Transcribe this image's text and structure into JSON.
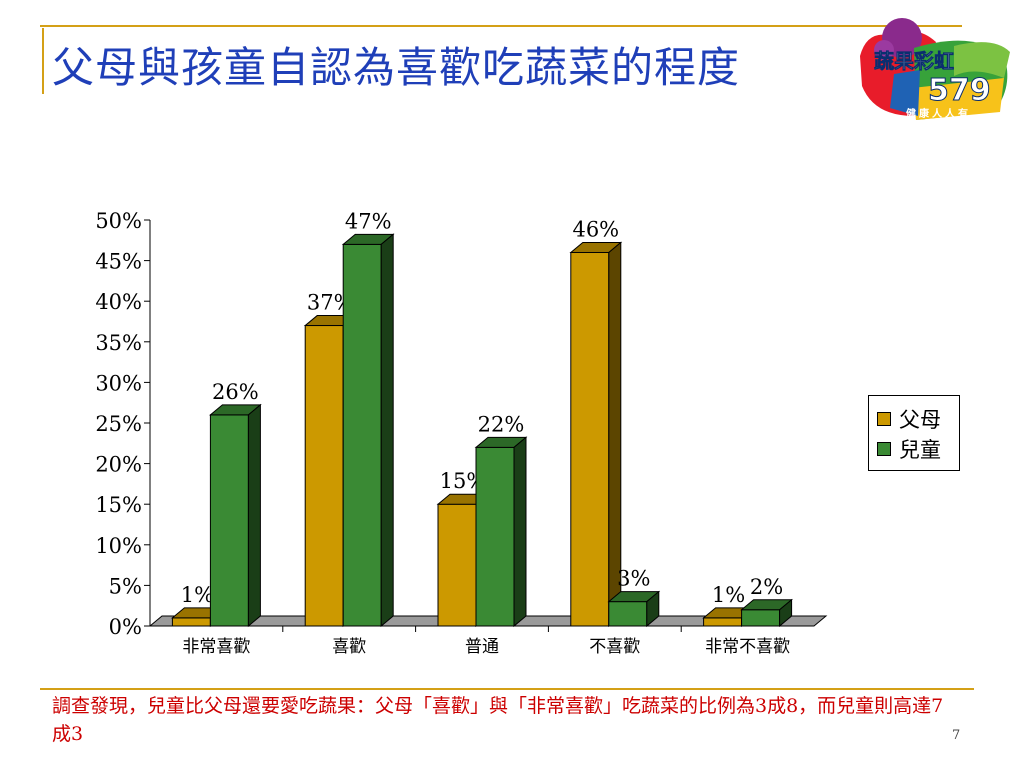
{
  "slide": {
    "title": "父母與孩童自認為喜歡吃蔬菜的程度",
    "note": "調查發現，兒童比父母還要愛吃蔬果：父母「喜歡」與「非常喜歡」吃蔬菜的比例為3成8，而兒童則高達7成3",
    "page_number": "7"
  },
  "logo": {
    "text_top": "蔬果彩虹",
    "text_num": "579",
    "text_bottom": "健康人人有"
  },
  "colors": {
    "frame": "#d4a017",
    "title": "#1f3fb8",
    "note": "#cc0000",
    "series_parent": "#cc9900",
    "series_child": "#3a8a34"
  },
  "chart_data": {
    "type": "bar",
    "categories": [
      "非常喜歡",
      "喜歡",
      "普通",
      "不喜歡",
      "非常不喜歡"
    ],
    "series": [
      {
        "name": "父母",
        "values": [
          1,
          37,
          15,
          46,
          1
        ],
        "labels": [
          "1%",
          "37%",
          "15%",
          "46%",
          "1%"
        ]
      },
      {
        "name": "兒童",
        "values": [
          26,
          47,
          22,
          3,
          2
        ],
        "labels": [
          "26%",
          "47%",
          "22%",
          "3%",
          "2%"
        ]
      }
    ],
    "ylim": [
      0,
      50
    ],
    "yticks": [
      "0%",
      "5%",
      "10%",
      "15%",
      "20%",
      "25%",
      "30%",
      "35%",
      "40%",
      "45%",
      "50%"
    ],
    "legend": "right",
    "style": "3d"
  }
}
